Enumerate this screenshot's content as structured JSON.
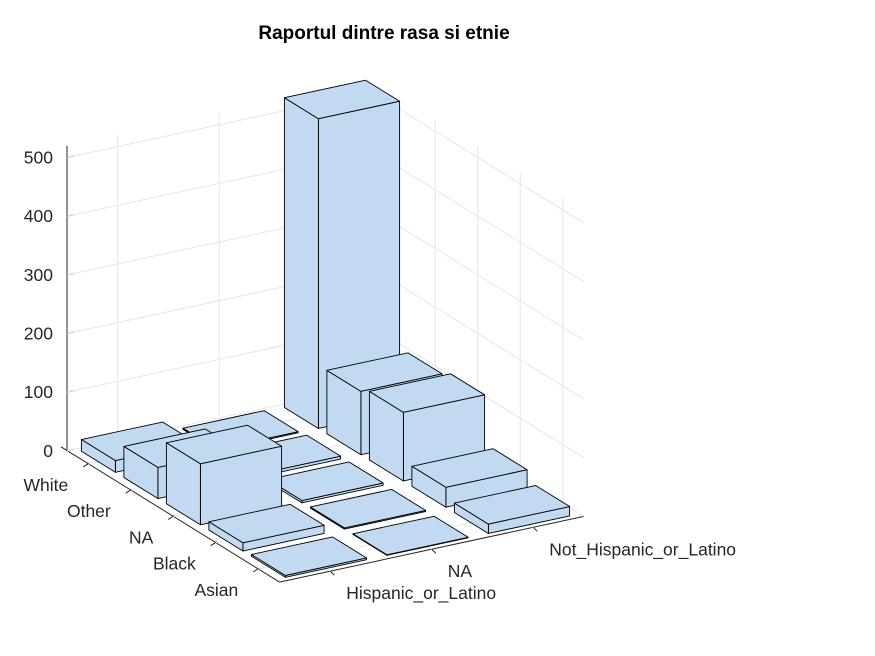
{
  "chart_data": {
    "type": "bar3",
    "title": "Raportul dintre rasa si etnie",
    "x_categories": [
      "White",
      "Other",
      "NA",
      "Black",
      "Asian"
    ],
    "y_categories": [
      "Hispanic_or_Latino",
      "NA",
      "Not_Hispanic_or_Latino"
    ],
    "z_ticks": [
      0,
      100,
      200,
      300,
      400,
      500
    ],
    "zlim": [
      0,
      520
    ],
    "grid": true,
    "bar_color": "#c2daf1",
    "edge_color": "#000000",
    "values": [
      [
        20,
        2,
        528
      ],
      [
        53,
        5,
        108
      ],
      [
        104,
        4,
        117
      ],
      [
        14,
        2,
        34
      ],
      [
        3,
        1,
        16
      ]
    ]
  }
}
